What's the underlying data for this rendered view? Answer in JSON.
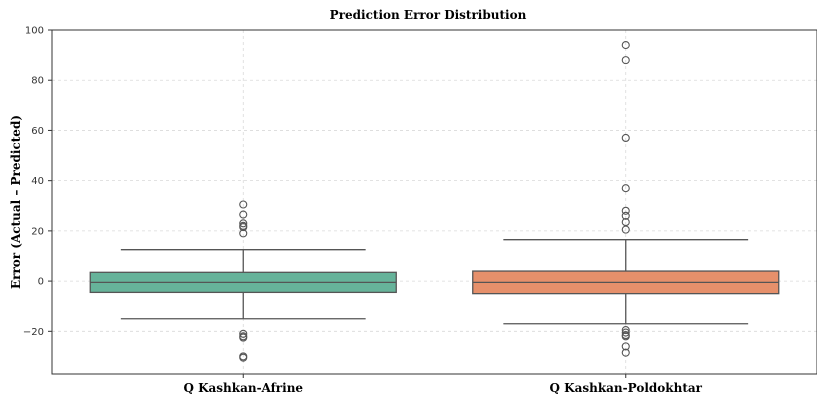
{
  "chart_data": {
    "type": "box",
    "title": "Prediction Error Distribution",
    "xlabel": "",
    "ylabel": "Error (Actual – Predicted)",
    "ylim": [
      -37,
      100
    ],
    "yticks": [
      -20,
      0,
      20,
      40,
      60,
      80,
      100
    ],
    "ytick_labels": [
      "−20",
      "0",
      "20",
      "40",
      "60",
      "80",
      "100"
    ],
    "grid": true,
    "categories": [
      "Q Kashkan-Afrine",
      "Q Kashkan-Poldokhtar"
    ],
    "boxes": [
      {
        "category": "Q Kashkan-Afrine",
        "color": "#66b39a",
        "whisker_low": -15,
        "q1": -4.5,
        "median": -0.5,
        "q3": 3.5,
        "whisker_high": 12.5,
        "outliers": [
          30.5,
          26.5,
          23,
          22,
          21.5,
          19,
          -21,
          -22,
          -22.5,
          -30,
          -30.5
        ]
      },
      {
        "category": "Q Kashkan-Poldokhtar",
        "color": "#e6906b",
        "whisker_low": -17,
        "q1": -5,
        "median": -0.5,
        "q3": 4,
        "whisker_high": 16.5,
        "outliers": [
          94,
          88,
          57,
          37,
          28,
          26,
          23.5,
          20.5,
          -19.5,
          -20.5,
          -21.5,
          -22,
          -26,
          -28.5
        ]
      }
    ]
  }
}
